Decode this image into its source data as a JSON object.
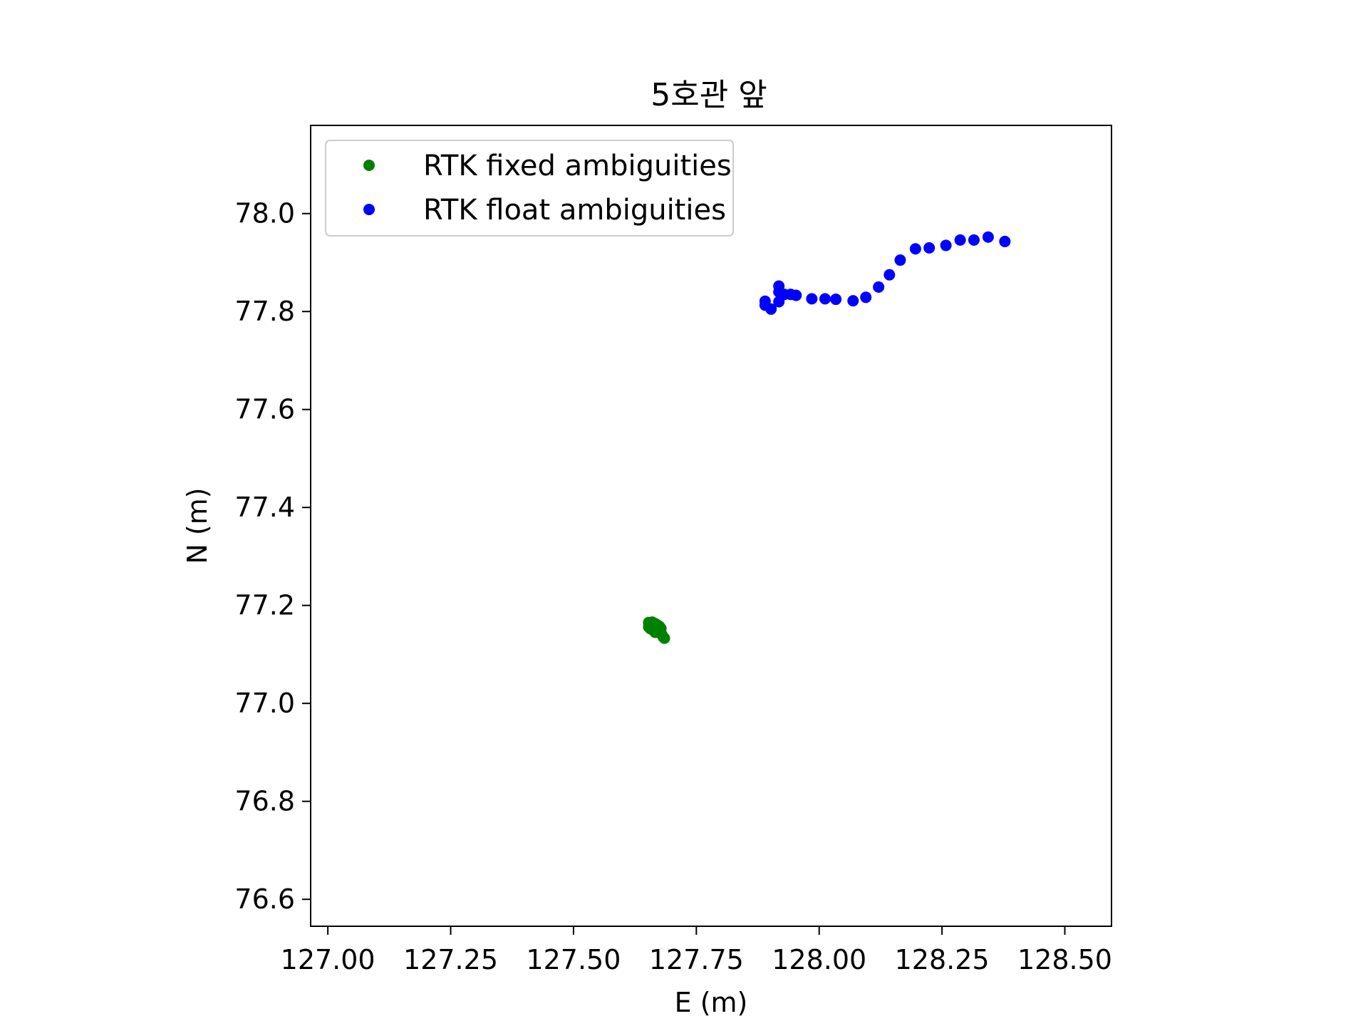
{
  "chart_data": {
    "type": "scatter",
    "title": "5호관 앞",
    "xlabel": "E (m)",
    "ylabel": "N (m)",
    "xlim": [
      126.965,
      128.595
    ],
    "ylim": [
      76.545,
      78.18
    ],
    "xticks": [
      127.0,
      127.25,
      127.5,
      127.75,
      128.0,
      128.25,
      128.5
    ],
    "xtick_labels": [
      "127.00",
      "127.25",
      "127.50",
      "127.75",
      "128.00",
      "128.25",
      "128.50"
    ],
    "yticks": [
      76.6,
      76.8,
      77.0,
      77.2,
      77.4,
      77.6,
      77.8,
      78.0
    ],
    "ytick_labels": [
      "76.6",
      "76.8",
      "77.0",
      "77.2",
      "77.4",
      "77.6",
      "77.8",
      "78.0"
    ],
    "grid": false,
    "legend_position": "upper-left",
    "series": [
      {
        "name": "RTK fixed ambiguities",
        "color": "#008000",
        "marker": "circle",
        "points": [
          [
            127.653,
            77.165
          ],
          [
            127.66,
            77.166
          ],
          [
            127.666,
            77.163
          ],
          [
            127.671,
            77.16
          ],
          [
            127.675,
            77.157
          ],
          [
            127.678,
            77.153
          ],
          [
            127.676,
            77.147
          ],
          [
            127.67,
            77.148
          ],
          [
            127.664,
            77.15
          ],
          [
            127.657,
            77.152
          ],
          [
            127.653,
            77.156
          ],
          [
            127.656,
            77.16
          ],
          [
            127.662,
            77.158
          ],
          [
            127.668,
            77.155
          ],
          [
            127.673,
            77.151
          ],
          [
            127.666,
            77.145
          ],
          [
            127.68,
            77.14
          ],
          [
            127.683,
            77.135
          ],
          [
            127.685,
            77.133
          ]
        ]
      },
      {
        "name": "RTK float ambiguities",
        "color": "#0000ff",
        "marker": "circle",
        "points": [
          [
            127.89,
            77.821
          ],
          [
            127.89,
            77.813
          ],
          [
            127.902,
            77.805
          ],
          [
            127.918,
            77.852
          ],
          [
            127.918,
            77.84
          ],
          [
            127.918,
            77.82
          ],
          [
            127.929,
            77.835
          ],
          [
            127.942,
            77.835
          ],
          [
            127.953,
            77.833
          ],
          [
            127.985,
            77.826
          ],
          [
            128.012,
            77.826
          ],
          [
            128.034,
            77.825
          ],
          [
            128.069,
            77.822
          ],
          [
            128.095,
            77.829
          ],
          [
            128.121,
            77.85
          ],
          [
            128.143,
            77.875
          ],
          [
            128.165,
            77.905
          ],
          [
            128.196,
            77.928
          ],
          [
            128.224,
            77.93
          ],
          [
            128.258,
            77.935
          ],
          [
            128.287,
            77.946
          ],
          [
            128.315,
            77.946
          ],
          [
            128.344,
            77.952
          ],
          [
            128.378,
            77.943
          ]
        ]
      }
    ]
  }
}
